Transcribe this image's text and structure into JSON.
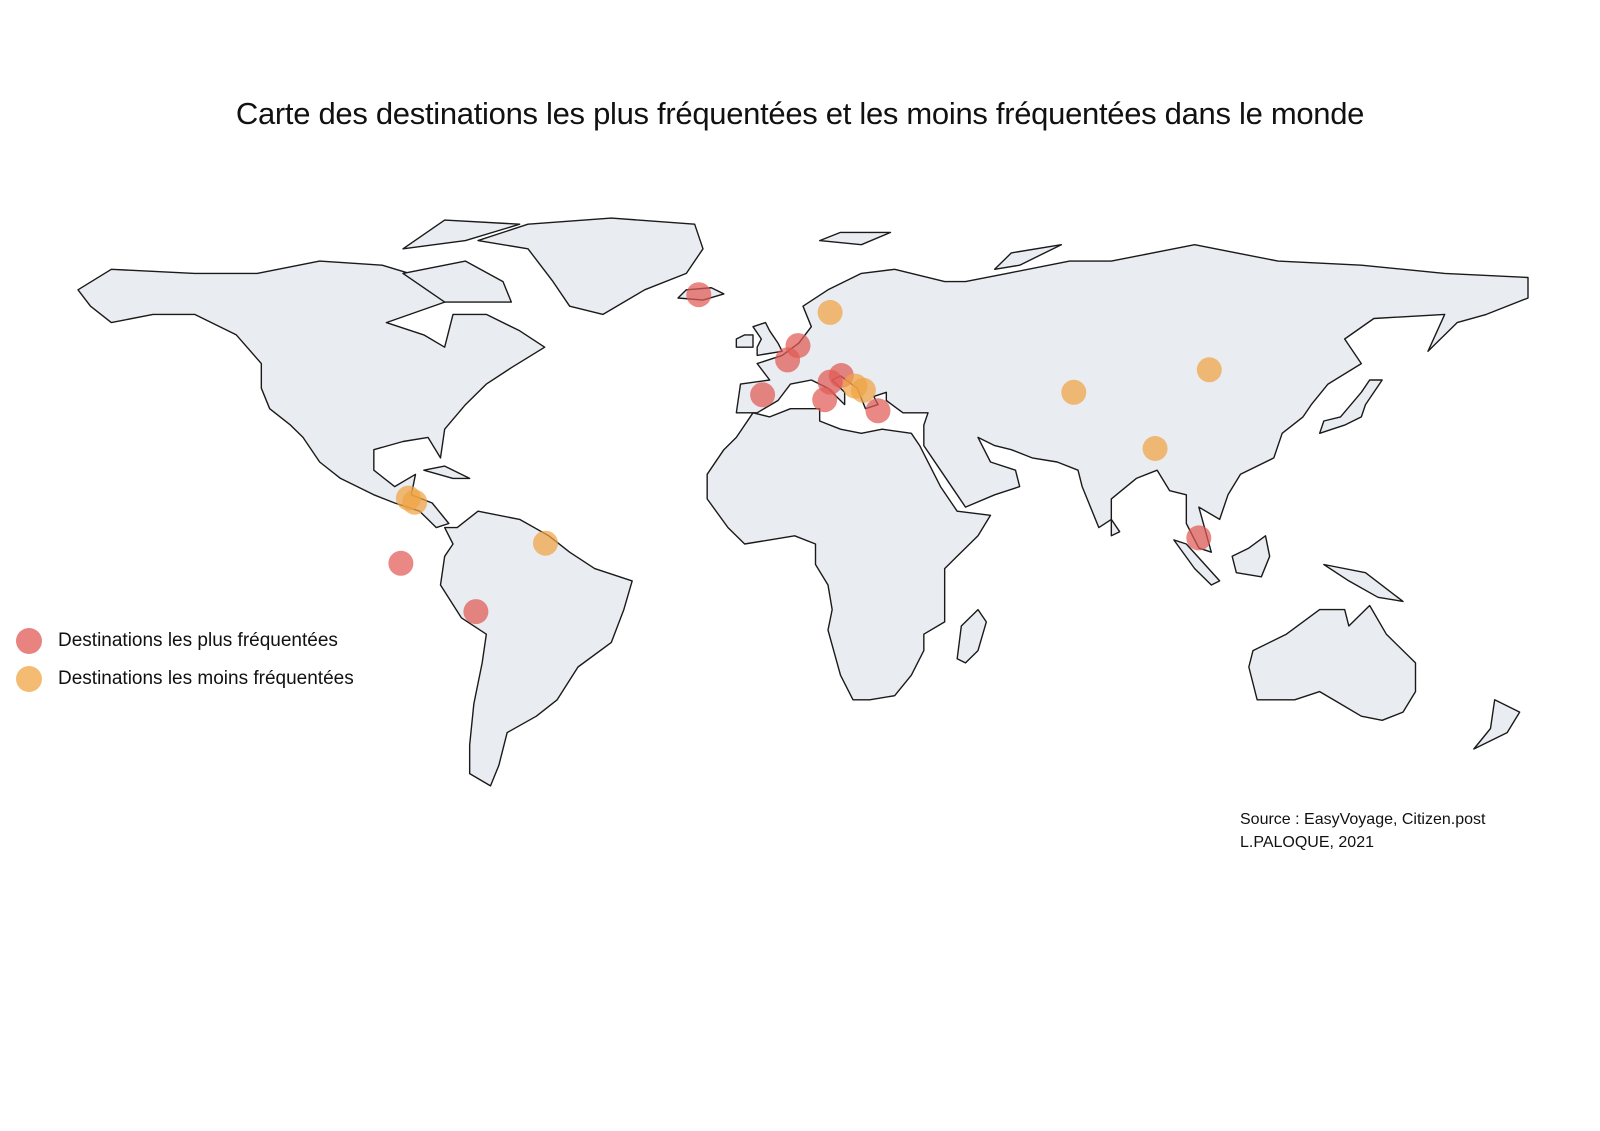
{
  "title": "Carte des destinations les plus fréquentées et les moins fréquentées dans le monde",
  "legend": {
    "most_label": "Destinations les plus fréquentées",
    "least_label": "Destinations les moins fréquentées"
  },
  "colors": {
    "most": "#e05a55",
    "least": "#f0a444",
    "land": "#e9ecf1",
    "border": "#1a1a1a"
  },
  "source_line": "Source : EasyVoyage, Citizen.post",
  "author_line": "L.PALOQUE, 2021",
  "destinations": [
    {
      "category": "most",
      "lon": -19,
      "lat": 64.8
    },
    {
      "category": "most",
      "lon": 4.8,
      "lat": 52.4
    },
    {
      "category": "most",
      "lon": 2.3,
      "lat": 48.9
    },
    {
      "category": "most",
      "lon": -3.7,
      "lat": 40.4
    },
    {
      "category": "most",
      "lon": 12.5,
      "lat": 43.5
    },
    {
      "category": "most",
      "lon": 11.2,
      "lat": 39.2
    },
    {
      "category": "most",
      "lon": 15.2,
      "lat": 45.1
    },
    {
      "category": "most",
      "lon": 24.0,
      "lat": 36.5
    },
    {
      "category": "most",
      "lon": -90.5,
      "lat": -0.7
    },
    {
      "category": "most",
      "lon": -72.5,
      "lat": -12.5
    },
    {
      "category": "most",
      "lon": 101.0,
      "lat": 5.5
    },
    {
      "category": "least",
      "lon": 12.5,
      "lat": 60.5
    },
    {
      "category": "least",
      "lon": 18.5,
      "lat": 42.5
    },
    {
      "category": "least",
      "lon": 20.5,
      "lat": 41.5
    },
    {
      "category": "least",
      "lon": 71.0,
      "lat": 41.0
    },
    {
      "category": "least",
      "lon": 103.5,
      "lat": 46.5
    },
    {
      "category": "least",
      "lon": 90.5,
      "lat": 27.3
    },
    {
      "category": "least",
      "lon": -88.7,
      "lat": 15.2
    },
    {
      "category": "least",
      "lon": -87.2,
      "lat": 14.2
    },
    {
      "category": "least",
      "lon": -55.8,
      "lat": 4.2
    }
  ]
}
